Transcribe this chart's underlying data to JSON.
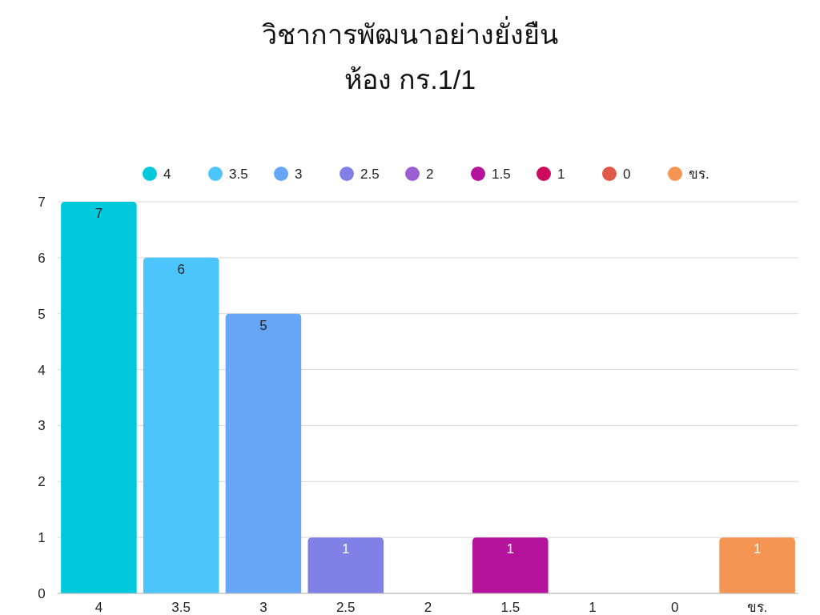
{
  "chart_data": {
    "type": "bar",
    "title": "วิชาการพัฒนาอย่างยั่งยืน\nห้อง กร.1/1",
    "categories": [
      "4",
      "3.5",
      "3",
      "2.5",
      "2",
      "1.5",
      "1",
      "0",
      "ขร."
    ],
    "series": [
      {
        "name": "4",
        "color": "#00c9db",
        "values": [
          7,
          null,
          null,
          null,
          null,
          null,
          null,
          null,
          null
        ],
        "value_labels": [
          "7",
          null,
          null,
          null,
          null,
          null,
          null,
          null,
          null
        ]
      },
      {
        "name": "3.5",
        "color": "#4cc5fc",
        "values": [
          null,
          6,
          null,
          null,
          null,
          null,
          null,
          null,
          null
        ],
        "value_labels": [
          null,
          "6",
          null,
          null,
          null,
          null,
          null,
          null,
          null
        ]
      },
      {
        "name": "3",
        "color": "#67a6f7",
        "values": [
          null,
          null,
          5,
          null,
          null,
          null,
          null,
          null,
          null
        ],
        "value_labels": [
          null,
          null,
          "5",
          null,
          null,
          null,
          null,
          null,
          null
        ]
      },
      {
        "name": "2.5",
        "color": "#8080e6",
        "values": [
          null,
          null,
          null,
          1,
          null,
          null,
          null,
          null,
          null
        ],
        "value_labels": [
          null,
          null,
          null,
          "1",
          null,
          null,
          null,
          null,
          null
        ]
      },
      {
        "name": "2",
        "color": "#9b5fd3",
        "values": [
          null,
          null,
          null,
          null,
          0,
          null,
          null,
          null,
          null
        ]
      },
      {
        "name": "1.5",
        "color": "#b5139c",
        "values": [
          null,
          null,
          null,
          null,
          null,
          1,
          null,
          null,
          null
        ],
        "value_labels": [
          null,
          null,
          null,
          null,
          null,
          "1",
          null,
          null,
          null
        ]
      },
      {
        "name": "1",
        "color": "#cc0a5e",
        "values": [
          null,
          null,
          null,
          null,
          null,
          null,
          0,
          null,
          null
        ]
      },
      {
        "name": "0",
        "color": "#e05a4a",
        "values": [
          null,
          null,
          null,
          null,
          null,
          null,
          null,
          0,
          null
        ]
      },
      {
        "name": "ขร.",
        "color": "#f59554",
        "values": [
          null,
          null,
          null,
          null,
          null,
          null,
          null,
          null,
          1
        ],
        "value_labels": [
          null,
          null,
          null,
          null,
          null,
          null,
          null,
          null,
          "1"
        ]
      }
    ],
    "ylim": [
      0,
      7
    ],
    "yticks": [
      0,
      1,
      2,
      3,
      4,
      5,
      6,
      7
    ],
    "grid": "y",
    "legend": "top"
  }
}
